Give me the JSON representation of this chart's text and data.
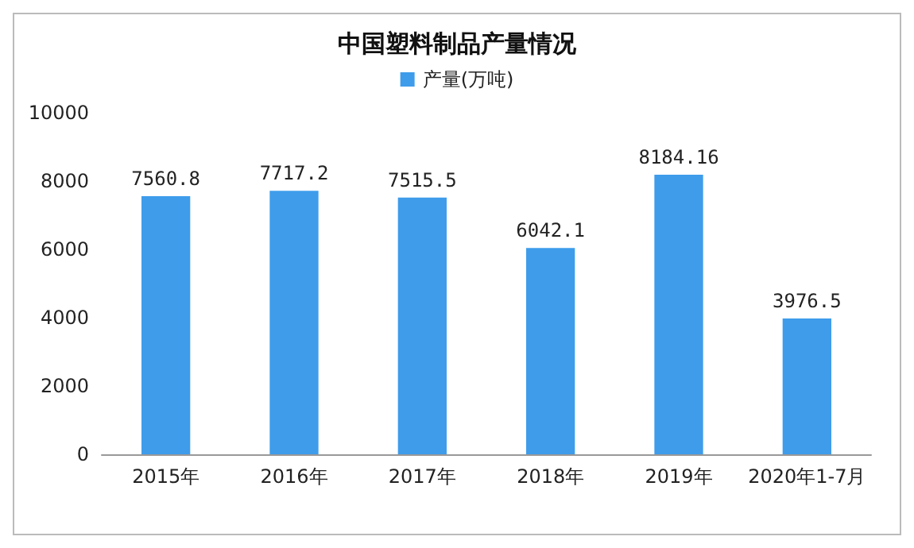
{
  "chart_data": {
    "type": "bar",
    "title": "中国塑料制品产量情况",
    "categories": [
      "2015年",
      "2016年",
      "2017年",
      "2018年",
      "2019年",
      "2020年1-7月"
    ],
    "series": [
      {
        "name": "产量(万吨)",
        "color": "#3e9ceb",
        "values": [
          7560.8,
          7717.2,
          7515.5,
          6042.1,
          8184.16,
          3976.5
        ]
      }
    ],
    "ylim": [
      0,
      10000
    ],
    "yticks": [
      0,
      2000,
      4000,
      6000,
      8000,
      10000
    ],
    "grid": false,
    "legend": "top",
    "data_labels": true
  }
}
